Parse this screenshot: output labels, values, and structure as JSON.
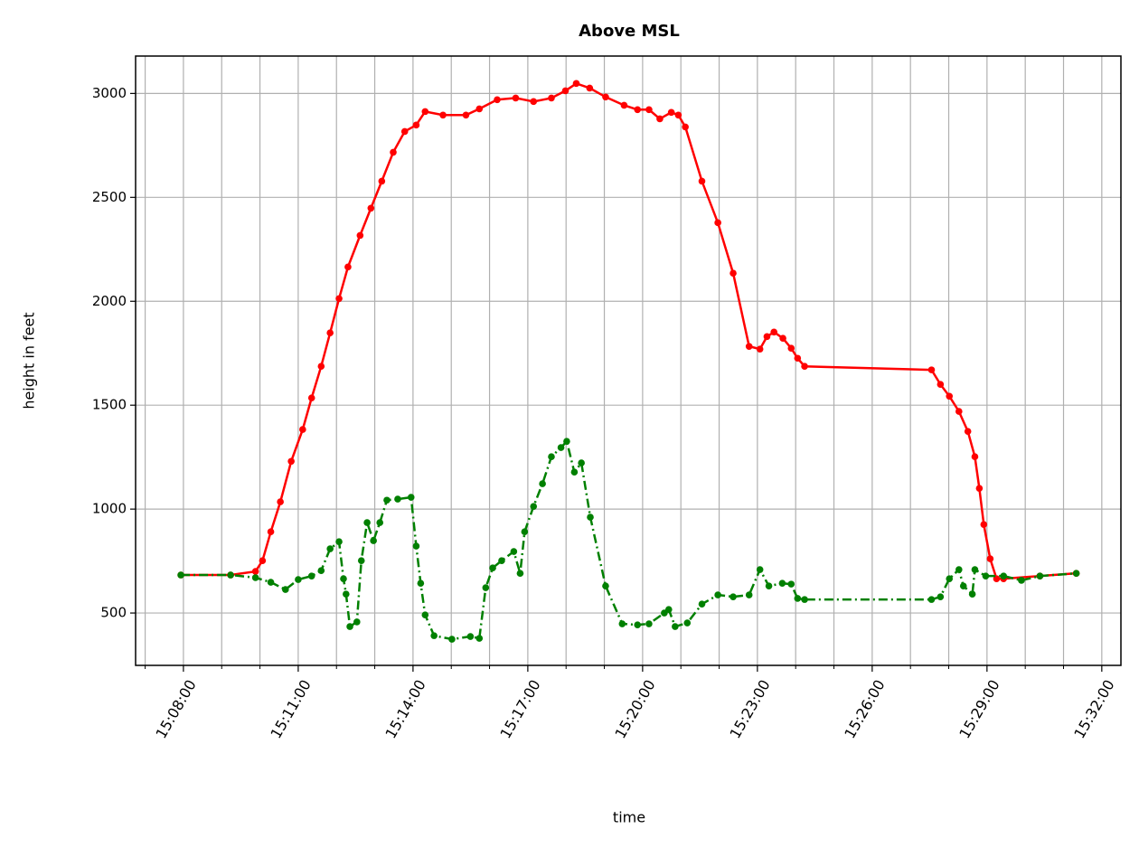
{
  "chart_data": {
    "type": "line",
    "title": "Above MSL",
    "xlabel": "time",
    "ylabel": "height in feet",
    "xlim": [
      "15:06:45",
      "15:32:30"
    ],
    "xticks": [
      "15:08:00",
      "15:11:00",
      "15:14:00",
      "15:17:00",
      "15:20:00",
      "15:23:00",
      "15:26:00",
      "15:29:00",
      "15:32:00"
    ],
    "xminorticks": [
      "15:07:00",
      "15:09:00",
      "15:10:00",
      "15:12:00",
      "15:13:00",
      "15:15:00",
      "15:16:00",
      "15:18:00",
      "15:19:00",
      "15:21:00",
      "15:22:00",
      "15:24:00",
      "15:25:00",
      "15:27:00",
      "15:28:00",
      "15:30:00",
      "15:31:00"
    ],
    "ylim": [
      248,
      3180
    ],
    "yticks": [
      500,
      1000,
      1500,
      2000,
      2500,
      3000
    ],
    "grid": true,
    "series": [
      {
        "color": "#ff0000",
        "linestyle": "solid",
        "x": [
          "15:07:56",
          "15:09:14",
          "15:09:53",
          "15:10:04",
          "15:10:17",
          "15:10:32",
          "15:10:49",
          "15:11:07",
          "15:11:21",
          "15:11:36",
          "15:11:50",
          "15:12:04",
          "15:12:18",
          "15:12:37",
          "15:12:54",
          "15:13:11",
          "15:13:29",
          "15:13:47",
          "15:14:05",
          "15:14:19",
          "15:14:47",
          "15:15:23",
          "15:15:44",
          "15:16:12",
          "15:16:41",
          "15:17:09",
          "15:17:37",
          "15:17:59",
          "15:18:16",
          "15:18:37",
          "15:19:02",
          "15:19:31",
          "15:19:52",
          "15:20:10",
          "15:20:27",
          "15:20:45",
          "15:20:56",
          "15:21:07",
          "15:21:33",
          "15:21:58",
          "15:22:22",
          "15:22:47",
          "15:23:04",
          "15:23:15",
          "15:23:26",
          "15:23:40",
          "15:23:53",
          "15:24:03",
          "15:24:14",
          "15:27:33",
          "15:27:47",
          "15:28:01",
          "15:28:16",
          "15:28:30",
          "15:28:41",
          "15:28:48",
          "15:28:55",
          "15:29:05",
          "15:29:15",
          "15:29:26",
          "15:30:23",
          "15:31:20"
        ],
        "values": [
          683,
          683,
          700,
          752,
          891,
          1035,
          1230,
          1383,
          1535,
          1687,
          1848,
          2013,
          2165,
          2317,
          2448,
          2578,
          2717,
          2817,
          2848,
          2913,
          2896,
          2896,
          2926,
          2970,
          2978,
          2961,
          2978,
          3013,
          3048,
          3026,
          2983,
          2943,
          2922,
          2922,
          2878,
          2909,
          2896,
          2839,
          2578,
          2378,
          2135,
          1783,
          1770,
          1830,
          1852,
          1822,
          1774,
          1726,
          1687,
          1670,
          1600,
          1543,
          1470,
          1374,
          1252,
          1100,
          926,
          761,
          665,
          665,
          678,
          691
        ]
      },
      {
        "color": "#008000",
        "linestyle": "dashdot",
        "x": [
          "15:07:56",
          "15:09:14",
          "15:09:53",
          "15:10:17",
          "15:10:40",
          "15:11:00",
          "15:11:21",
          "15:11:36",
          "15:11:50",
          "15:12:04",
          "15:12:11",
          "15:12:15",
          "15:12:21",
          "15:12:32",
          "15:12:39",
          "15:12:48",
          "15:12:58",
          "15:13:08",
          "15:13:19",
          "15:13:36",
          "15:13:57",
          "15:14:05",
          "15:14:12",
          "15:14:19",
          "15:14:33",
          "15:15:01",
          "15:15:30",
          "15:15:44",
          "15:15:54",
          "15:16:05",
          "15:16:19",
          "15:16:38",
          "15:16:48",
          "15:16:55",
          "15:17:09",
          "15:17:23",
          "15:17:37",
          "15:17:52",
          "15:18:01",
          "15:18:13",
          "15:18:24",
          "15:18:38",
          "15:19:02",
          "15:19:28",
          "15:19:52",
          "15:20:10",
          "15:20:34",
          "15:20:41",
          "15:20:51",
          "15:21:10",
          "15:21:33",
          "15:21:58",
          "15:22:22",
          "15:22:47",
          "15:23:04",
          "15:23:18",
          "15:23:39",
          "15:23:53",
          "15:24:03",
          "15:24:14",
          "15:27:33",
          "15:27:47",
          "15:28:01",
          "15:28:16",
          "15:28:23",
          "15:28:37",
          "15:28:41",
          "15:28:58",
          "15:29:26",
          "15:29:54",
          "15:30:23",
          "15:31:20"
        ],
        "values": [
          683,
          683,
          670,
          648,
          613,
          661,
          678,
          704,
          809,
          843,
          665,
          591,
          435,
          457,
          752,
          935,
          848,
          935,
          1043,
          1048,
          1057,
          822,
          643,
          491,
          391,
          374,
          387,
          378,
          622,
          717,
          752,
          796,
          691,
          891,
          1013,
          1122,
          1252,
          1296,
          1326,
          1178,
          1222,
          961,
          630,
          448,
          443,
          448,
          500,
          517,
          435,
          452,
          543,
          587,
          578,
          587,
          709,
          630,
          643,
          639,
          570,
          565,
          565,
          578,
          665,
          709,
          630,
          591,
          709,
          678,
          678,
          657,
          678,
          691
        ]
      }
    ]
  }
}
